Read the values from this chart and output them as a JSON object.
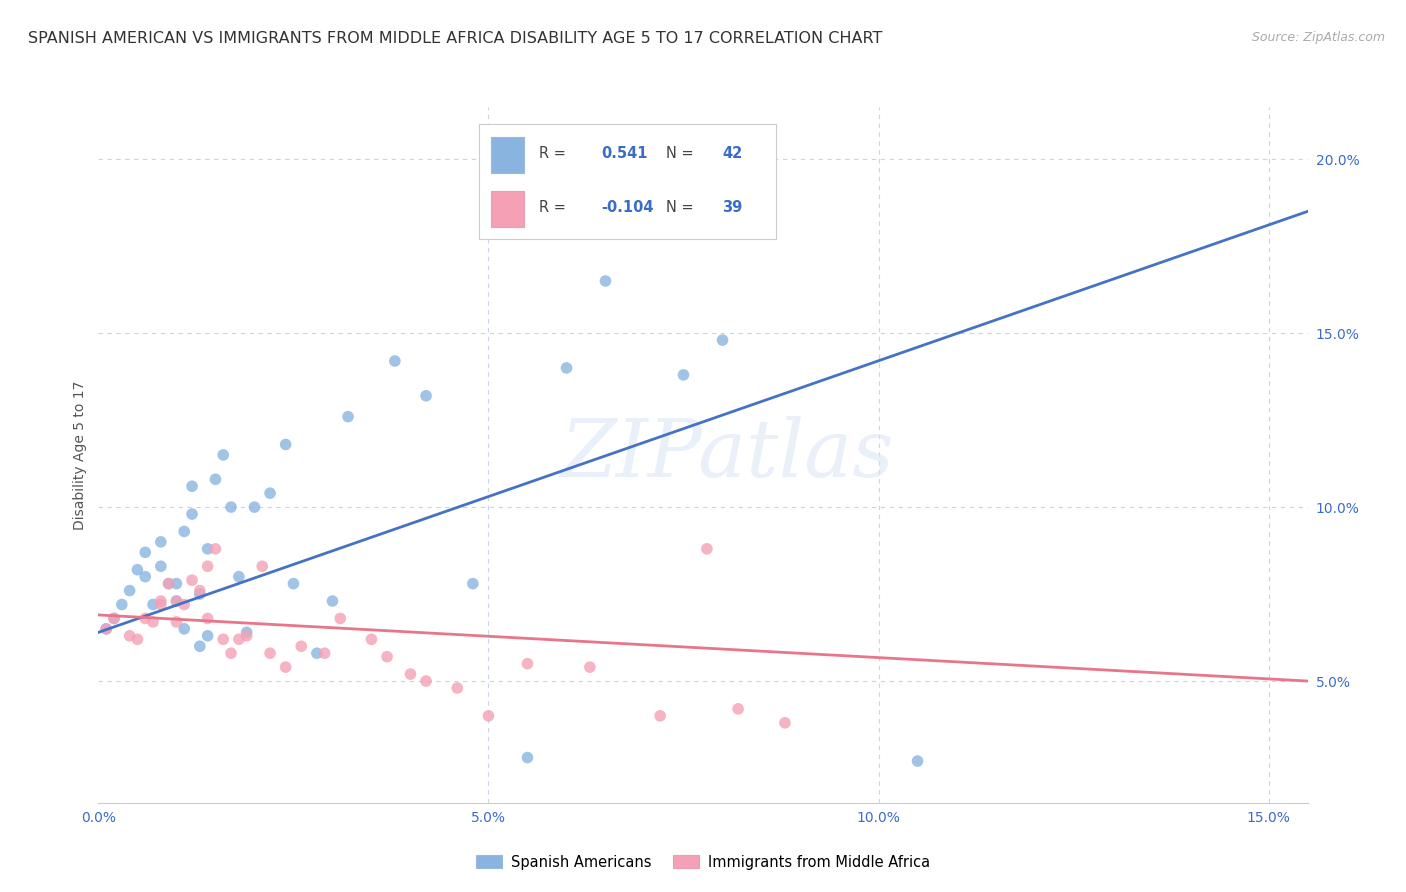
{
  "title": "SPANISH AMERICAN VS IMMIGRANTS FROM MIDDLE AFRICA DISABILITY AGE 5 TO 17 CORRELATION CHART",
  "source": "Source: ZipAtlas.com",
  "ylabel": "Disability Age 5 to 17",
  "xlim": [
    0.0,
    0.155
  ],
  "ylim": [
    0.015,
    0.215
  ],
  "xticks": [
    0.0,
    0.05,
    0.1,
    0.15
  ],
  "xticklabels": [
    "0.0%",
    "5.0%",
    "10.0%",
    "15.0%"
  ],
  "yticks_right": [
    0.05,
    0.1,
    0.15,
    0.2
  ],
  "yticklabels_right": [
    "5.0%",
    "10.0%",
    "15.0%",
    "20.0%"
  ],
  "blue_R": "0.541",
  "blue_N": "42",
  "pink_R": "-0.104",
  "pink_N": "39",
  "blue_color": "#8ab4e0",
  "pink_color": "#f4a0b5",
  "blue_line_color": "#4472c4",
  "pink_line_color": "#e8758a",
  "watermark_text": "ZIPatlas",
  "legend_label_blue": "Spanish Americans",
  "legend_label_pink": "Immigrants from Middle Africa",
  "blue_scatter_x": [
    0.001,
    0.002,
    0.003,
    0.004,
    0.005,
    0.006,
    0.006,
    0.007,
    0.008,
    0.008,
    0.009,
    0.01,
    0.01,
    0.011,
    0.011,
    0.012,
    0.012,
    0.013,
    0.013,
    0.014,
    0.014,
    0.015,
    0.016,
    0.017,
    0.018,
    0.019,
    0.02,
    0.022,
    0.024,
    0.025,
    0.028,
    0.03,
    0.032,
    0.038,
    0.042,
    0.048,
    0.055,
    0.06,
    0.065,
    0.075,
    0.08,
    0.105
  ],
  "blue_scatter_y": [
    0.065,
    0.068,
    0.072,
    0.076,
    0.082,
    0.08,
    0.087,
    0.072,
    0.083,
    0.09,
    0.078,
    0.073,
    0.078,
    0.065,
    0.093,
    0.098,
    0.106,
    0.075,
    0.06,
    0.063,
    0.088,
    0.108,
    0.115,
    0.1,
    0.08,
    0.064,
    0.1,
    0.104,
    0.118,
    0.078,
    0.058,
    0.073,
    0.126,
    0.142,
    0.132,
    0.078,
    0.028,
    0.14,
    0.165,
    0.138,
    0.148,
    0.027
  ],
  "pink_scatter_x": [
    0.001,
    0.002,
    0.004,
    0.005,
    0.006,
    0.007,
    0.008,
    0.008,
    0.009,
    0.01,
    0.01,
    0.011,
    0.012,
    0.013,
    0.014,
    0.014,
    0.015,
    0.016,
    0.017,
    0.018,
    0.019,
    0.021,
    0.022,
    0.024,
    0.026,
    0.029,
    0.031,
    0.035,
    0.037,
    0.04,
    0.042,
    0.046,
    0.05,
    0.055,
    0.063,
    0.072,
    0.078,
    0.082,
    0.088
  ],
  "pink_scatter_y": [
    0.065,
    0.068,
    0.063,
    0.062,
    0.068,
    0.067,
    0.073,
    0.072,
    0.078,
    0.067,
    0.073,
    0.072,
    0.079,
    0.076,
    0.068,
    0.083,
    0.088,
    0.062,
    0.058,
    0.062,
    0.063,
    0.083,
    0.058,
    0.054,
    0.06,
    0.058,
    0.068,
    0.062,
    0.057,
    0.052,
    0.05,
    0.048,
    0.04,
    0.055,
    0.054,
    0.04,
    0.088,
    0.042,
    0.038
  ],
  "blue_line_x": [
    0.0,
    0.155
  ],
  "blue_line_y": [
    0.064,
    0.185
  ],
  "pink_line_x": [
    0.0,
    0.155
  ],
  "pink_line_y": [
    0.069,
    0.05
  ],
  "background_color": "#ffffff",
  "grid_color": "#c8d4e8",
  "title_fontsize": 11.5,
  "label_fontsize": 10,
  "tick_fontsize": 10,
  "marker_size": 70
}
